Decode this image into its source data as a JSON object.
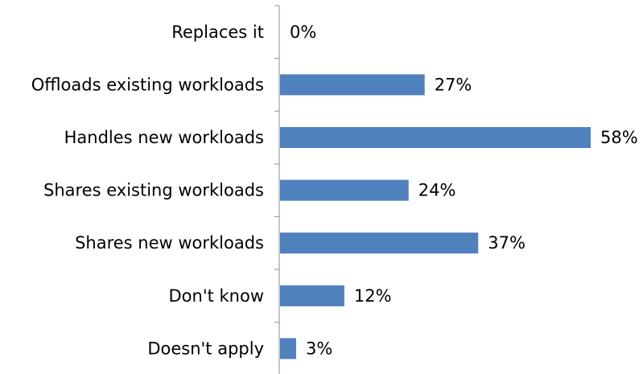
{
  "chart_data": {
    "type": "bar",
    "orientation": "horizontal",
    "categories": [
      "Replaces it",
      "Offloads existing workloads",
      "Handles new workloads",
      "Shares existing workloads",
      "Shares new workloads",
      "Don't know",
      "Doesn't apply"
    ],
    "values": [
      0,
      27,
      58,
      24,
      37,
      12,
      3
    ],
    "value_labels": [
      "0%",
      "27%",
      "58%",
      "24%",
      "37%",
      "12%",
      "3%"
    ],
    "unit": "%",
    "xlim": [
      0,
      58
    ],
    "grid": false,
    "legend": "none",
    "bar_color": "#4f81bd"
  }
}
